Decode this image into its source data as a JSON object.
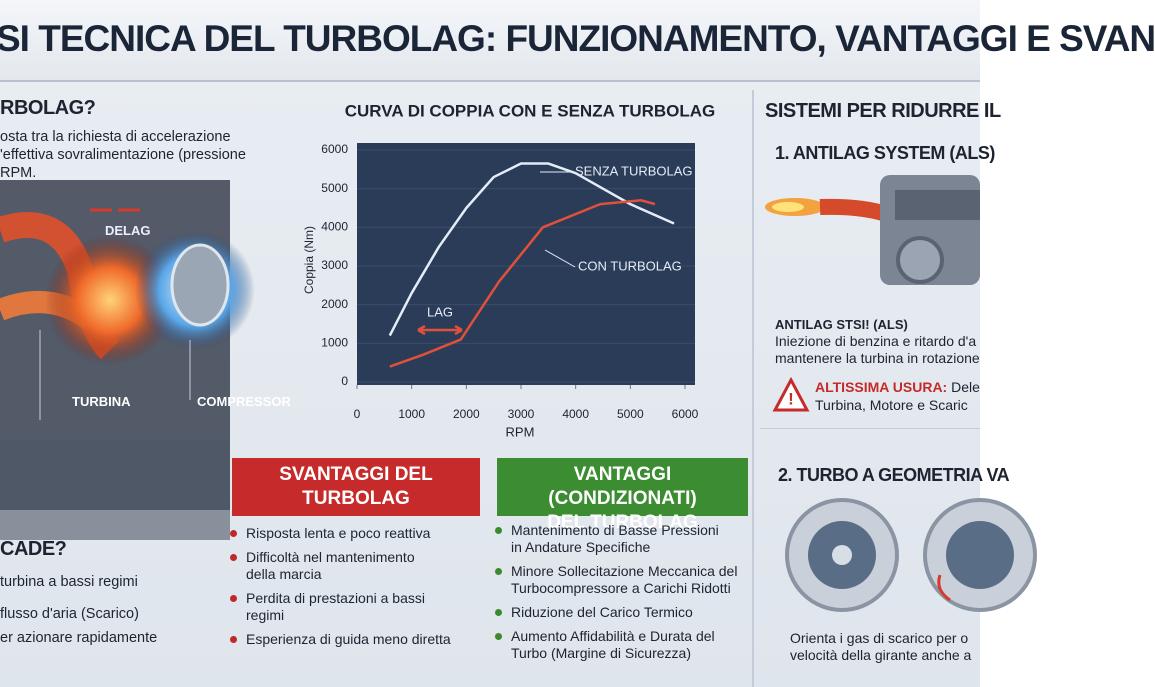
{
  "title": "SI TECNICA DEL TURBOLAG: FUNZIONAMENTO, VANTAGGI E SVAN",
  "left": {
    "heading": "RBOLAG?",
    "text": [
      "osta tra la richiesta di accelerazione",
      "'effettiva sovralimentazione (pressione",
      "RPM."
    ],
    "labels": {
      "delag": "DELAG",
      "turbina": "TURBINA",
      "compressor": "COMPRESSOR"
    },
    "heading2": "CADE?",
    "text2": [
      "turbina a bassi regimi",
      "flusso d'aria (Scarico)",
      "er azionare rapidamente"
    ]
  },
  "chart_data": {
    "type": "line",
    "title": "CURVA DI COPPIA CON E SENZA TURBOLAG",
    "xlabel": "RPM",
    "ylabel": "Coppia (Nm)",
    "xlim": [
      0,
      6000
    ],
    "ylim": [
      0,
      6000
    ],
    "xticks": [
      0,
      1000,
      2000,
      3000,
      4000,
      5000,
      6000
    ],
    "yticks": [
      0,
      1000,
      2000,
      3000,
      4000,
      5000,
      6000
    ],
    "series": [
      {
        "name": "SENZA TURBOLAG",
        "color": "#e4ecf7",
        "x": [
          600,
          1000,
          1500,
          2000,
          2500,
          3000,
          3500,
          4000,
          4500,
          5000,
          5800
        ],
        "values": [
          1200,
          2300,
          3500,
          4500,
          5300,
          5650,
          5650,
          5400,
          5000,
          4600,
          4100
        ]
      },
      {
        "name": "CON TURBOLAG",
        "color": "#e0503a",
        "x": [
          600,
          1200,
          1900,
          2600,
          3400,
          4450,
          5200,
          5450
        ],
        "values": [
          400,
          700,
          1100,
          2600,
          4000,
          4600,
          4700,
          4600
        ]
      }
    ],
    "annotation": "LAG"
  },
  "svantaggi": {
    "heading": [
      "SVANTAGGI DEL",
      "TURBOLAG"
    ],
    "items": [
      [
        "Risposta lenta e poco reattiva"
      ],
      [
        "Difficoltà nel mantenimento",
        "della marcia"
      ],
      [
        "Perdita di prestazioni a bassi",
        "regimi"
      ],
      [
        "Esperienza di guida meno diretta"
      ]
    ]
  },
  "vantaggi": {
    "heading": [
      "VANTAGGI (CONDIZIONATI)",
      "DEL TURBOLAG"
    ],
    "items": [
      [
        "Mantenimento di Basse Pressioni",
        "in Andature Specifiche"
      ],
      [
        "Minore Sollecitazione Meccanica del",
        "Turbocompressore a Carichi Ridotti"
      ],
      [
        "Riduzione del Carico Termico"
      ],
      [
        "Aumento Affidabilità e Durata del",
        "Turbo (Margine di Sicurezza)"
      ]
    ]
  },
  "right": {
    "heading": "SISTEMI PER RIDURRE IL",
    "als_heading": "1. ANTILAG SYSTEM (ALS)",
    "als_title": "ANTILAG STSI! (ALS)",
    "als_text": [
      "Iniezione di benzina e ritardo d'a",
      "mantenere la turbina in rotazione"
    ],
    "warning_bold": "ALTISSIMA USURA:",
    "warning_rest": "Dele",
    "warning_text2": "Turbina, Motore e Scaric",
    "vgt_heading": "2. TURBO A GEOMETRIA VA",
    "vgt_text": [
      "Orienta i gas di scarico per o",
      "velocità della girante anche a"
    ]
  }
}
